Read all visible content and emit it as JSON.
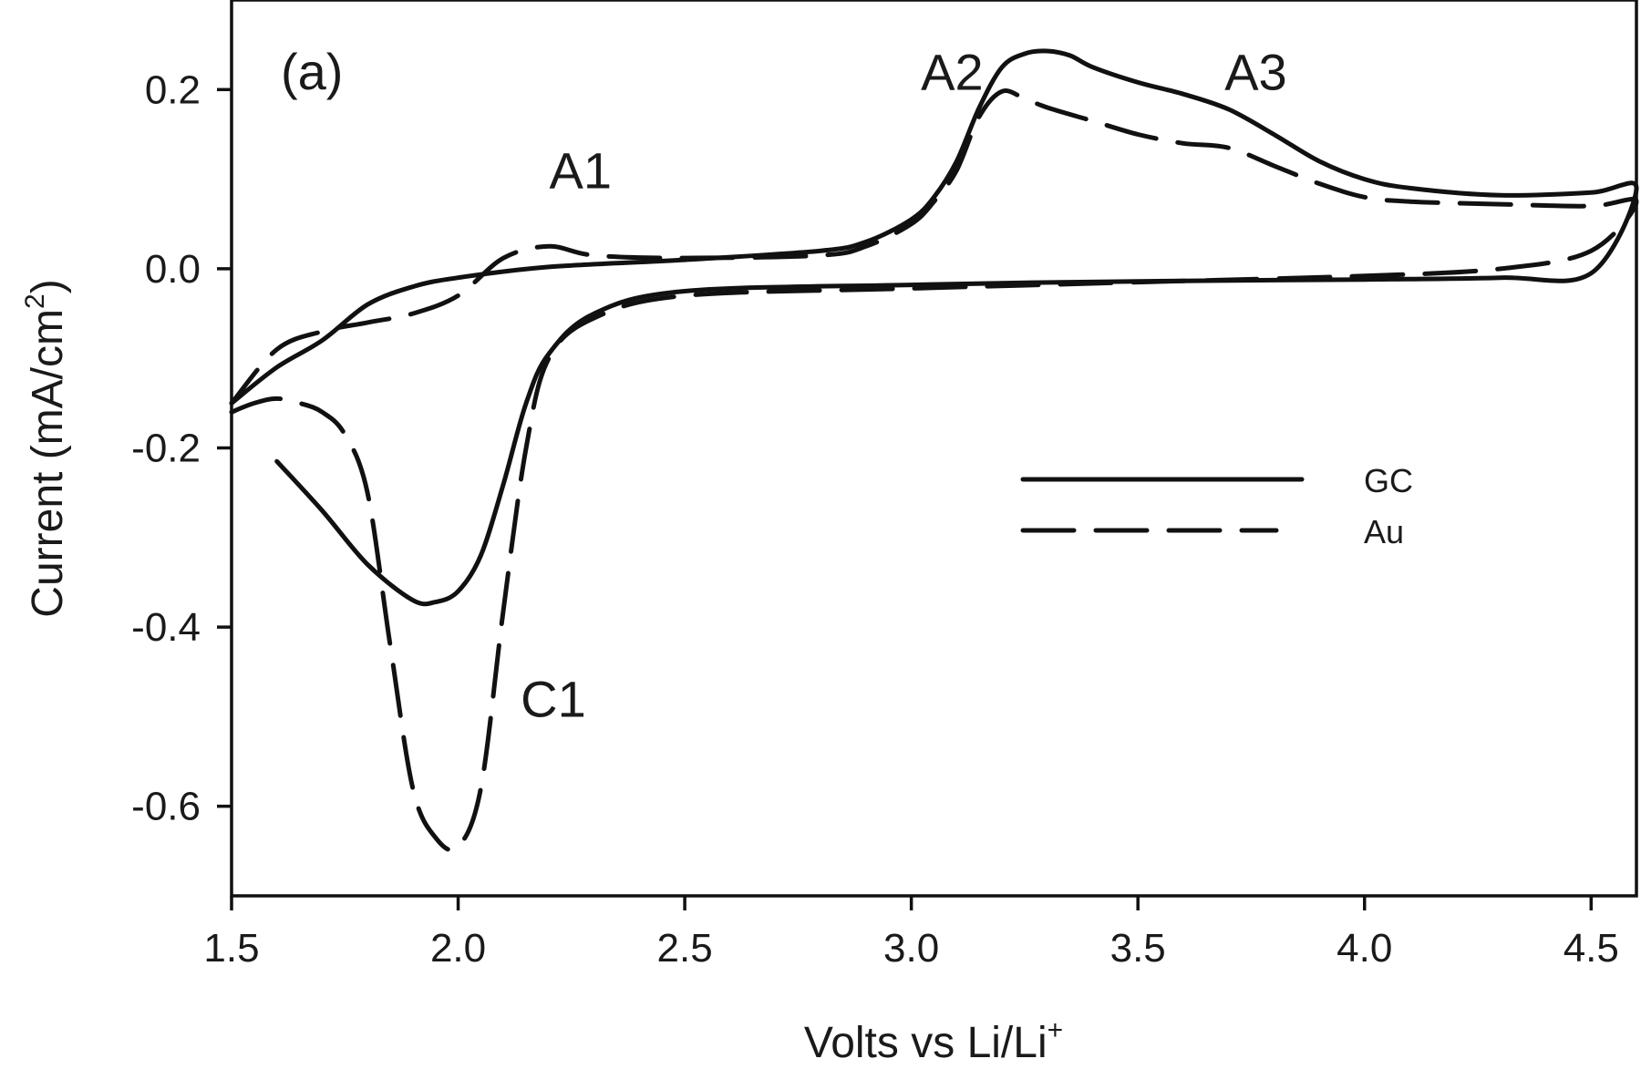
{
  "chart_data": {
    "type": "line",
    "xlabel": {
      "base": "Volts vs Li/Li",
      "sup": "+"
    },
    "ylabel": {
      "base": "Current (mA/cm",
      "sup": "2",
      "tail": ")"
    },
    "xlim": [
      1.5,
      4.6
    ],
    "ylim": [
      -0.7,
      0.3
    ],
    "xticks": [
      1.5,
      2.0,
      2.5,
      3.0,
      3.5,
      4.0,
      4.5
    ],
    "xtick_labels": [
      "1.5",
      "2.0",
      "2.5",
      "3.0",
      "3.5",
      "4.0",
      "4.5"
    ],
    "yticks": [
      -0.6,
      -0.4,
      -0.2,
      0.0,
      0.2
    ],
    "ytick_labels": [
      "-0.6",
      "-0.4",
      "-0.2",
      "0.0",
      "0.2"
    ],
    "grid": false,
    "legend_position": "right",
    "panel_label": "(a)",
    "series": [
      {
        "name": "GC",
        "style": "solid",
        "x": [
          1.6,
          1.7,
          1.8,
          1.9,
          1.95,
          2.0,
          2.05,
          2.1,
          2.15,
          2.2,
          2.3,
          2.5,
          3.0,
          3.5,
          4.0,
          4.3,
          4.5,
          4.6,
          4.5,
          4.3,
          4.1,
          4.0,
          3.9,
          3.8,
          3.7,
          3.6,
          3.5,
          3.4,
          3.35,
          3.3,
          3.25,
          3.2,
          3.15,
          3.1,
          3.05,
          3.0,
          2.9,
          2.8,
          2.5,
          2.2,
          2.0,
          1.9,
          1.8,
          1.7,
          1.6,
          1.5
        ],
        "y": [
          -0.215,
          -0.27,
          -0.33,
          -0.37,
          -0.372,
          -0.36,
          -0.32,
          -0.24,
          -0.15,
          -0.095,
          -0.05,
          -0.025,
          -0.018,
          -0.014,
          -0.012,
          -0.01,
          -0.005,
          0.09,
          0.085,
          0.082,
          0.09,
          0.1,
          0.12,
          0.15,
          0.178,
          0.195,
          0.208,
          0.225,
          0.238,
          0.243,
          0.24,
          0.225,
          0.18,
          0.12,
          0.08,
          0.055,
          0.03,
          0.02,
          0.01,
          0.002,
          -0.01,
          -0.02,
          -0.04,
          -0.08,
          -0.11,
          -0.15
        ]
      },
      {
        "name": "Au",
        "style": "dashed",
        "x": [
          1.5,
          1.55,
          1.6,
          1.65,
          1.7,
          1.75,
          1.8,
          1.85,
          1.9,
          1.95,
          2.0,
          2.05,
          2.1,
          2.15,
          2.2,
          2.3,
          2.5,
          3.0,
          3.5,
          4.0,
          4.3,
          4.5,
          4.6,
          4.5,
          4.3,
          4.1,
          4.0,
          3.9,
          3.8,
          3.7,
          3.6,
          3.5,
          3.4,
          3.3,
          3.25,
          3.2,
          3.15,
          3.1,
          3.05,
          3.0,
          2.9,
          2.8,
          2.5,
          2.3,
          2.2,
          2.1,
          2.0,
          1.9,
          1.8,
          1.7,
          1.6,
          1.5
        ],
        "y": [
          -0.16,
          -0.15,
          -0.145,
          -0.15,
          -0.16,
          -0.185,
          -0.25,
          -0.42,
          -0.58,
          -0.635,
          -0.645,
          -0.58,
          -0.38,
          -0.2,
          -0.1,
          -0.055,
          -0.03,
          -0.022,
          -0.015,
          -0.008,
          0.0,
          0.02,
          0.075,
          0.07,
          0.072,
          0.075,
          0.08,
          0.095,
          0.115,
          0.135,
          0.14,
          0.15,
          0.165,
          0.18,
          0.19,
          0.198,
          0.17,
          0.11,
          0.075,
          0.05,
          0.025,
          0.015,
          0.012,
          0.015,
          0.025,
          0.012,
          -0.03,
          -0.05,
          -0.06,
          -0.07,
          -0.09,
          -0.15
        ]
      }
    ],
    "annotations": [
      {
        "text": "A1",
        "x": 2.27,
        "y": 0.09
      },
      {
        "text": "A2",
        "x": 3.09,
        "y": 0.2
      },
      {
        "text": "A3",
        "x": 3.76,
        "y": 0.2
      },
      {
        "text": "C1",
        "x": 2.21,
        "y": -0.5
      }
    ]
  }
}
